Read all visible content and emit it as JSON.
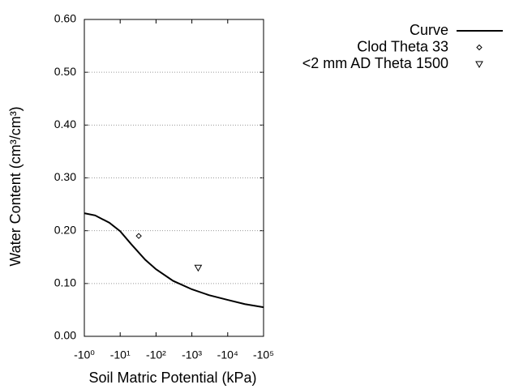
{
  "chart_data": {
    "type": "line",
    "xlabel": "Soil Matric Potential (kPa)",
    "ylabel": "Water Content (cm³/cm³)",
    "xscale": "log",
    "xlim": [
      1,
      100000
    ],
    "xticks": [
      {
        "value": 1,
        "label": "-10⁰"
      },
      {
        "value": 10,
        "label": "-10¹"
      },
      {
        "value": 100,
        "label": "-10²"
      },
      {
        "value": 1000,
        "label": "-10³"
      },
      {
        "value": 10000,
        "label": "-10⁴"
      },
      {
        "value": 100000,
        "label": "-10⁵"
      }
    ],
    "ylim": [
      0,
      0.6
    ],
    "yticks": [
      {
        "value": 0,
        "label": "0.00"
      },
      {
        "value": 0.1,
        "label": "0.10"
      },
      {
        "value": 0.2,
        "label": "0.20"
      },
      {
        "value": 0.3,
        "label": "0.30"
      },
      {
        "value": 0.4,
        "label": "0.40"
      },
      {
        "value": 0.5,
        "label": "0.50"
      },
      {
        "value": 0.6,
        "label": "0.60"
      }
    ],
    "grid": true,
    "legend": "top-right",
    "series": [
      {
        "name": "Curve",
        "color": "#000000",
        "marker": "none",
        "x": [
          1,
          2,
          5,
          10,
          20,
          50,
          100,
          300,
          1000,
          3000,
          10000,
          30000,
          100000
        ],
        "values": [
          0.233,
          0.229,
          0.215,
          0.199,
          0.175,
          0.145,
          0.127,
          0.105,
          0.089,
          0.078,
          0.069,
          0.061,
          0.055
        ]
      },
      {
        "name": "Clod Theta 33",
        "color": "#000000",
        "marker": "diamond",
        "x": [
          33
        ],
        "values": [
          0.19
        ]
      },
      {
        "name": "<2 mm AD Theta 1500",
        "color": "#000000",
        "marker": "triangle-down",
        "x": [
          1500
        ],
        "values": [
          0.13
        ]
      }
    ]
  }
}
